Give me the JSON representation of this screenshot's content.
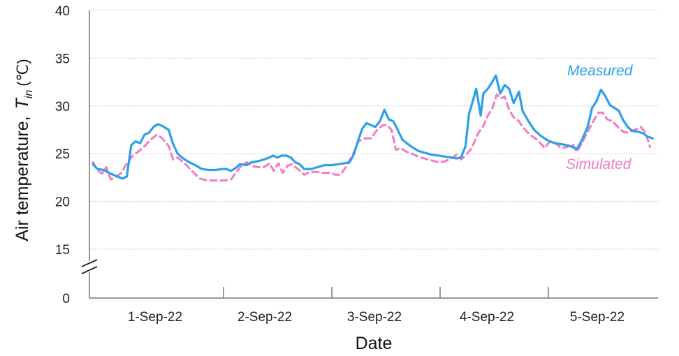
{
  "chart_data": {
    "type": "line",
    "title": "",
    "xlabel": "Date",
    "ylabel_main": "Air temperature,",
    "ylabel_symbol": "T",
    "ylabel_subscript": "in",
    "ylabel_unit": "(℃)",
    "y_axis_break": true,
    "ylim": [
      13,
      40
    ],
    "y_ticks": [
      "0",
      "15",
      "20",
      "25",
      "30",
      "35",
      "40"
    ],
    "x_day_labels": [
      "1-Sep-22",
      "2-Sep-22",
      "3-Sep-22",
      "4-Sep-22",
      "5-Sep-22"
    ],
    "grid": true,
    "legend": "inline labels at top-right and bottom-right",
    "series": [
      {
        "name": "Measured",
        "color": "#2E9FE8",
        "style": "solid",
        "points": [
          [
            0.0,
            23.9
          ],
          [
            0.05,
            23.4
          ],
          [
            0.12,
            23.3
          ],
          [
            0.2,
            22.9
          ],
          [
            0.28,
            22.6
          ],
          [
            0.33,
            22.4
          ],
          [
            0.38,
            22.6
          ],
          [
            0.43,
            25.9
          ],
          [
            0.48,
            26.3
          ],
          [
            0.53,
            26.1
          ],
          [
            0.58,
            27.0
          ],
          [
            0.63,
            27.2
          ],
          [
            0.68,
            27.8
          ],
          [
            0.73,
            28.1
          ],
          [
            0.78,
            27.9
          ],
          [
            0.85,
            27.5
          ],
          [
            0.9,
            26.0
          ],
          [
            0.95,
            25.0
          ],
          [
            1.0,
            24.6
          ],
          [
            1.08,
            24.1
          ],
          [
            1.15,
            23.8
          ],
          [
            1.22,
            23.4
          ],
          [
            1.3,
            23.3
          ],
          [
            1.38,
            23.3
          ],
          [
            1.45,
            23.4
          ],
          [
            1.5,
            23.4
          ],
          [
            1.55,
            23.2
          ],
          [
            1.6,
            23.5
          ],
          [
            1.65,
            23.9
          ],
          [
            1.72,
            23.8
          ],
          [
            1.78,
            24.1
          ],
          [
            1.85,
            24.2
          ],
          [
            1.92,
            24.4
          ],
          [
            1.98,
            24.6
          ],
          [
            2.02,
            24.8
          ],
          [
            2.07,
            24.6
          ],
          [
            2.12,
            24.8
          ],
          [
            2.17,
            24.8
          ],
          [
            2.22,
            24.6
          ],
          [
            2.27,
            24.1
          ],
          [
            2.32,
            23.9
          ],
          [
            2.37,
            23.4
          ],
          [
            2.45,
            23.4
          ],
          [
            2.52,
            23.6
          ],
          [
            2.6,
            23.8
          ],
          [
            2.68,
            23.8
          ],
          [
            2.75,
            23.9
          ],
          [
            2.82,
            24.0
          ],
          [
            2.88,
            24.1
          ],
          [
            2.93,
            25.0
          ],
          [
            2.98,
            26.5
          ],
          [
            3.02,
            27.6
          ],
          [
            3.07,
            28.2
          ],
          [
            3.12,
            28.0
          ],
          [
            3.17,
            27.8
          ],
          [
            3.22,
            28.4
          ],
          [
            3.27,
            29.6
          ],
          [
            3.32,
            28.6
          ],
          [
            3.37,
            28.4
          ],
          [
            3.42,
            27.5
          ],
          [
            3.47,
            26.5
          ],
          [
            3.52,
            26.1
          ],
          [
            3.58,
            25.7
          ],
          [
            3.65,
            25.3
          ],
          [
            3.72,
            25.1
          ],
          [
            3.8,
            24.9
          ],
          [
            3.88,
            24.8
          ],
          [
            3.95,
            24.7
          ],
          [
            4.02,
            24.6
          ],
          [
            4.08,
            24.5
          ],
          [
            4.13,
            24.6
          ],
          [
            4.18,
            25.8
          ],
          [
            4.22,
            29.2
          ],
          [
            4.27,
            30.8
          ],
          [
            4.3,
            31.8
          ],
          [
            4.35,
            29.0
          ],
          [
            4.38,
            31.3
          ],
          [
            4.43,
            31.8
          ],
          [
            4.48,
            32.5
          ],
          [
            4.52,
            33.2
          ],
          [
            4.57,
            31.3
          ],
          [
            4.62,
            32.2
          ],
          [
            4.67,
            31.8
          ],
          [
            4.72,
            30.3
          ],
          [
            4.78,
            31.5
          ],
          [
            4.82,
            29.5
          ],
          [
            4.88,
            28.5
          ],
          [
            4.95,
            27.5
          ],
          [
            5.02,
            26.9
          ],
          [
            5.1,
            26.4
          ],
          [
            5.18,
            26.1
          ],
          [
            5.25,
            26.0
          ],
          [
            5.32,
            25.9
          ],
          [
            5.38,
            25.7
          ],
          [
            5.43,
            25.5
          ],
          [
            5.48,
            26.3
          ],
          [
            5.55,
            27.8
          ],
          [
            5.6,
            29.8
          ],
          [
            5.65,
            30.5
          ],
          [
            5.7,
            31.7
          ],
          [
            5.75,
            31.0
          ],
          [
            5.8,
            30.1
          ],
          [
            5.85,
            29.8
          ],
          [
            5.9,
            29.5
          ],
          [
            5.95,
            28.5
          ],
          [
            6.0,
            27.8
          ],
          [
            6.05,
            27.4
          ],
          [
            6.12,
            27.3
          ],
          [
            6.18,
            27.1
          ],
          [
            6.22,
            26.8
          ],
          [
            6.28,
            26.6
          ]
        ]
      },
      {
        "name": "Simulated",
        "color": "#F07CC4",
        "style": "dashed",
        "points": [
          [
            0.0,
            24.1
          ],
          [
            0.05,
            23.3
          ],
          [
            0.1,
            22.9
          ],
          [
            0.15,
            23.6
          ],
          [
            0.2,
            22.3
          ],
          [
            0.25,
            22.5
          ],
          [
            0.32,
            23.0
          ],
          [
            0.38,
            24.0
          ],
          [
            0.45,
            24.8
          ],
          [
            0.52,
            25.3
          ],
          [
            0.58,
            25.8
          ],
          [
            0.65,
            26.5
          ],
          [
            0.72,
            27.0
          ],
          [
            0.78,
            26.6
          ],
          [
            0.85,
            25.8
          ],
          [
            0.9,
            24.4
          ],
          [
            0.95,
            24.6
          ],
          [
            1.0,
            24.2
          ],
          [
            1.05,
            23.8
          ],
          [
            1.12,
            23.1
          ],
          [
            1.2,
            22.4
          ],
          [
            1.28,
            22.2
          ],
          [
            1.38,
            22.2
          ],
          [
            1.48,
            22.2
          ],
          [
            1.55,
            22.3
          ],
          [
            1.6,
            23.0
          ],
          [
            1.67,
            23.8
          ],
          [
            1.73,
            24.1
          ],
          [
            1.78,
            23.7
          ],
          [
            1.85,
            23.6
          ],
          [
            1.92,
            23.6
          ],
          [
            1.98,
            24.0
          ],
          [
            2.03,
            23.2
          ],
          [
            2.08,
            24.0
          ],
          [
            2.13,
            23.0
          ],
          [
            2.18,
            23.7
          ],
          [
            2.23,
            23.9
          ],
          [
            2.3,
            23.4
          ],
          [
            2.37,
            22.8
          ],
          [
            2.43,
            23.1
          ],
          [
            2.5,
            23.1
          ],
          [
            2.58,
            23.0
          ],
          [
            2.65,
            23.0
          ],
          [
            2.72,
            22.8
          ],
          [
            2.78,
            22.8
          ],
          [
            2.85,
            23.8
          ],
          [
            2.92,
            25.0
          ],
          [
            2.98,
            26.3
          ],
          [
            3.05,
            26.6
          ],
          [
            3.12,
            26.6
          ],
          [
            3.18,
            27.4
          ],
          [
            3.25,
            28.0
          ],
          [
            3.3,
            28.0
          ],
          [
            3.35,
            27.5
          ],
          [
            3.4,
            25.4
          ],
          [
            3.45,
            25.6
          ],
          [
            3.52,
            25.2
          ],
          [
            3.58,
            25.0
          ],
          [
            3.65,
            24.7
          ],
          [
            3.72,
            24.5
          ],
          [
            3.8,
            24.3
          ],
          [
            3.88,
            24.1
          ],
          [
            3.95,
            24.2
          ],
          [
            4.02,
            24.5
          ],
          [
            4.08,
            24.9
          ],
          [
            4.13,
            24.4
          ],
          [
            4.18,
            24.8
          ],
          [
            4.25,
            25.6
          ],
          [
            4.32,
            27.1
          ],
          [
            4.38,
            27.9
          ],
          [
            4.43,
            29.0
          ],
          [
            4.48,
            29.7
          ],
          [
            4.53,
            31.2
          ],
          [
            4.58,
            30.8
          ],
          [
            4.62,
            31.0
          ],
          [
            4.67,
            29.6
          ],
          [
            4.72,
            28.8
          ],
          [
            4.78,
            28.4
          ],
          [
            4.83,
            27.7
          ],
          [
            4.88,
            27.2
          ],
          [
            4.93,
            26.8
          ],
          [
            4.98,
            26.5
          ],
          [
            5.03,
            26.0
          ],
          [
            5.07,
            25.6
          ],
          [
            5.12,
            26.2
          ],
          [
            5.18,
            26.2
          ],
          [
            5.25,
            25.6
          ],
          [
            5.32,
            25.7
          ],
          [
            5.38,
            26.0
          ],
          [
            5.43,
            25.2
          ],
          [
            5.48,
            26.0
          ],
          [
            5.55,
            27.3
          ],
          [
            5.62,
            28.5
          ],
          [
            5.67,
            29.3
          ],
          [
            5.72,
            29.3
          ],
          [
            5.77,
            28.6
          ],
          [
            5.83,
            28.4
          ],
          [
            5.9,
            27.7
          ],
          [
            5.95,
            27.3
          ],
          [
            6.0,
            27.2
          ],
          [
            6.05,
            27.4
          ],
          [
            6.1,
            27.6
          ],
          [
            6.15,
            27.8
          ],
          [
            6.2,
            27.2
          ],
          [
            6.25,
            25.7
          ]
        ]
      }
    ]
  }
}
